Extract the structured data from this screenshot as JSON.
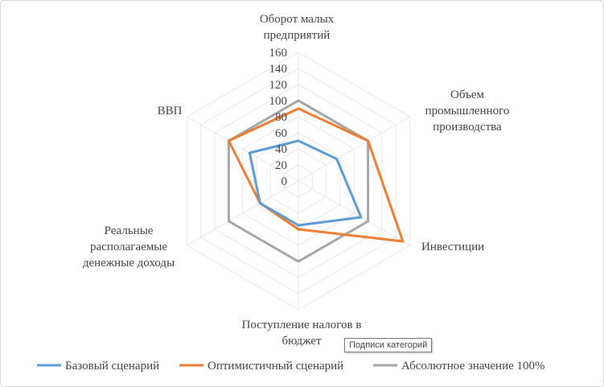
{
  "chart_data": {
    "type": "radar",
    "categories": [
      [
        "Оборот малых",
        "предприятий"
      ],
      [
        "Объем",
        "промышленного",
        "производства"
      ],
      [
        "Инвестиции"
      ],
      [
        "Поступление налогов в",
        "бюджет"
      ],
      [
        "Реальные",
        "располагаемые",
        "денежные доходы"
      ],
      [
        "ВВП"
      ]
    ],
    "series": [
      {
        "name": "Базовый сценарий",
        "color": "#5b9bd5",
        "values": [
          50,
          55,
          90,
          55,
          55,
          70
        ]
      },
      {
        "name": "Оптимистичный сценарий",
        "color": "#ed7d31",
        "values": [
          90,
          100,
          150,
          60,
          55,
          100
        ]
      },
      {
        "name": "Абсолютное значение 100%",
        "color": "#a5a5a5",
        "values": [
          100,
          100,
          100,
          100,
          100,
          100
        ]
      }
    ],
    "ylim": [
      0,
      160
    ],
    "ticks": [
      0,
      20,
      40,
      60,
      80,
      100,
      120,
      140,
      160
    ],
    "grid": true,
    "legend": "bottom"
  },
  "tooltip": {
    "text": "Подписи категорий"
  }
}
